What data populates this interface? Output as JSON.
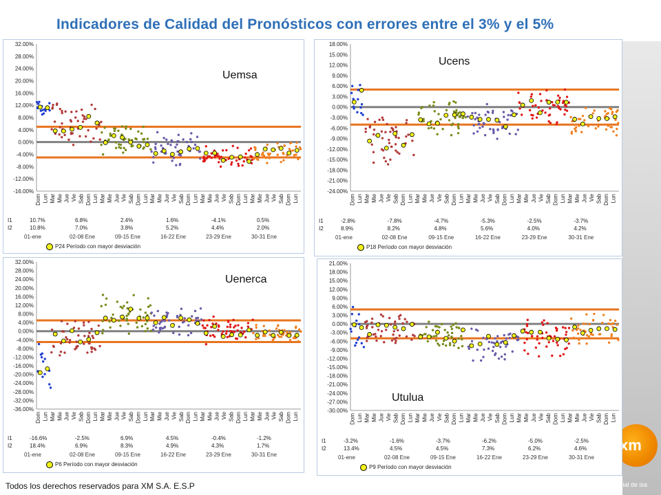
{
  "title": "Indicadores de Calidad del Pronósticos con errores entre el 3% y el 5%",
  "footer": "Todos los derechos reservados para XM S.A. E.S.P",
  "logo_text": "xm",
  "brand_subtext": "filial de isa",
  "colors": {
    "title": "#2e6fb7",
    "orange_line": "#e8731e",
    "gray_line": "#808080",
    "week1": "#1f3fd0",
    "week2": "#b23a3a",
    "week3": "#7a8a1a",
    "week4": "#6a5aa8",
    "week5": "#e01818",
    "week6": "#f08020",
    "highlight": "#f2f21a"
  },
  "day_ticks": [
    "Dom",
    "Lun",
    "Mar",
    "Mie",
    "Jue",
    "Vie",
    "Sab",
    "Dom",
    "Lun",
    "Mar",
    "Mie",
    "Jue",
    "Vie",
    "Sab",
    "Dom",
    "Lun",
    "Mar",
    "Mie",
    "Jue",
    "Vie",
    "Sab",
    "Dom",
    "Lun",
    "Mar",
    "Mie",
    "Jue",
    "Vie",
    "Sab",
    "Dom",
    "Lun",
    "Mar",
    "Mie",
    "Jue",
    "Vie",
    "Sab",
    "Dom",
    "Lun"
  ],
  "chart_data": [
    {
      "type": "scatter",
      "title": "Uemsa",
      "ylim": [
        -16,
        32
      ],
      "ystep": 4,
      "yticks": [
        "32.00%",
        "28.00%",
        "24.00%",
        "20.00%",
        "16.00%",
        "12.00%",
        "8.00%",
        "4.00%",
        "0.00%",
        "-4.00%",
        "-8.00%",
        "-12.00%",
        "-16.00%"
      ],
      "thresholds": [
        5,
        -5
      ],
      "period_means": [
        11,
        6,
        0.5,
        -2,
        -5,
        -3
      ],
      "spreads": [
        2,
        5,
        4,
        4,
        3,
        3
      ],
      "table": {
        "rows": [
          {
            "label": "I1",
            "values": [
              "10.7%",
              "6.8%",
              "2.4%",
              "1.6%",
              "-4.1%",
              "0.5%"
            ]
          },
          {
            "label": "I2",
            "values": [
              "10.8%",
              "7.0%",
              "3.8%",
              "5.2%",
              "4.4%",
              "2.0%"
            ]
          }
        ],
        "periods": [
          "01-ene",
          "02-08 Ene",
          "09-15 Ene",
          "16-22 Ene",
          "23-29 Ene",
          "30-31 Ene"
        ],
        "note": "P24  Período con mayor desviación"
      }
    },
    {
      "type": "scatter",
      "title": "Ucens",
      "ylim": [
        -24,
        18
      ],
      "ystep": 3,
      "yticks": [
        "18.00%",
        "15.00%",
        "12.00%",
        "9.00%",
        "6.00%",
        "3.00%",
        "0.00%",
        "-3.00%",
        "-6.00%",
        "-9.00%",
        "-12.00%",
        "-15.00%",
        "-18.00%",
        "-21.00%",
        "-24.00%"
      ],
      "thresholds": [
        5,
        -5
      ],
      "period_means": [
        2,
        -9,
        -3,
        -4,
        0,
        -4
      ],
      "spreads": [
        6,
        6,
        4,
        4,
        4,
        3
      ],
      "table": {
        "rows": [
          {
            "label": "I1",
            "values": [
              "-2.8%",
              "-7.8%",
              "-4.7%",
              "-5.3%",
              "-2.5%",
              "-3.7%"
            ]
          },
          {
            "label": "I2",
            "values": [
              "8.9%",
              "8.2%",
              "4.8%",
              "5.6%",
              "4.0%",
              "4.2%"
            ]
          }
        ],
        "periods": [
          "01-ene",
          "02-08 Ene",
          "09-15 Ene",
          "16-22 Ene",
          "23-29 Ene",
          "30-31 Ene"
        ],
        "note": "P18  Período con mayor desviación"
      }
    },
    {
      "type": "scatter",
      "title": "Uenerca",
      "ylim": [
        -36,
        32
      ],
      "ystep": 4,
      "yticks": [
        "32.00%",
        "28.00%",
        "24.00%",
        "20.00%",
        "16.00%",
        "12.00%",
        "8.00%",
        "4.00%",
        "0.00%",
        "-4.00%",
        "-8.00%",
        "-12.00%",
        "-16.00%",
        "-20.00%",
        "-24.00%",
        "-28.00%",
        "-32.00%",
        "-36.00%"
      ],
      "thresholds": [
        5,
        -5
      ],
      "period_means": [
        -16,
        -3,
        7,
        4,
        0,
        -1
      ],
      "spreads": [
        8,
        7,
        7,
        5,
        5,
        3
      ],
      "table": {
        "rows": [
          {
            "label": "I1",
            "values": [
              "-16.6%",
              "-2.5%",
              "6.9%",
              "4.5%",
              "-0.4%",
              "-1.2%"
            ]
          },
          {
            "label": "I2",
            "values": [
              "18.4%",
              "6.9%",
              "8.3%",
              "4.9%",
              "4.3%",
              "1.7%"
            ]
          }
        ],
        "periods": [
          "01-ene",
          "02-08 Ene",
          "09-15 Ene",
          "16-22 Ene",
          "23-29 Ene",
          "30-31 Ene"
        ],
        "note": "P6  Período con mayor desviación"
      }
    },
    {
      "type": "scatter",
      "title": "Utulua",
      "ylim": [
        -30,
        21
      ],
      "ystep": 3,
      "yticks": [
        "21.00%",
        "18.00%",
        "15.00%",
        "12.00%",
        "9.00%",
        "6.00%",
        "3.00%",
        "0.00%",
        "-3.00%",
        "-6.00%",
        "-9.00%",
        "-12.00%",
        "-15.00%",
        "-18.00%",
        "-21.00%",
        "-24.00%",
        "-27.00%",
        "-30.00%"
      ],
      "thresholds": [
        5,
        -5
      ],
      "period_means": [
        -3,
        -2,
        -4,
        -6,
        -5,
        -2
      ],
      "spreads": [
        9,
        4,
        4,
        5,
        5,
        4
      ],
      "table": {
        "rows": [
          {
            "label": "I1",
            "values": [
              "-3.2%",
              "-1.6%",
              "-3.7%",
              "-6.2%",
              "-5.0%",
              "-2.5%"
            ]
          },
          {
            "label": "I2",
            "values": [
              "13.4%",
              "4.5%",
              "4.5%",
              "7.3%",
              "6.2%",
              "4.6%"
            ]
          }
        ],
        "periods": [
          "01-ene",
          "02-08 Ene",
          "09-15 Ene",
          "16-22 Ene",
          "23-29 Ene",
          "30-31 Ene"
        ],
        "note": "P9  Período con mayor desviación"
      }
    }
  ]
}
